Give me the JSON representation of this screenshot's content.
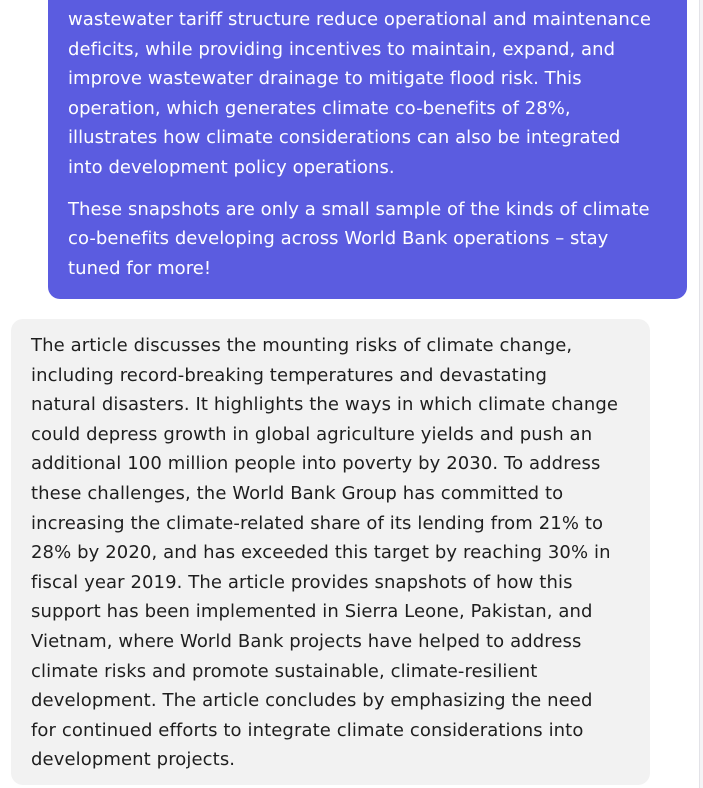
{
  "conversation": {
    "user_message": {
      "paragraph_1_lines": [
        "wastewater tariff structure reduce operational and maintenance",
        "deficits, while providing incentives to maintain, expand, and",
        "improve wastewater drainage to mitigate flood risk. This",
        "operation, which generates climate co-benefits of 28%,",
        "illustrates how climate considerations can also be integrated",
        "into development policy operations."
      ],
      "paragraph_2_lines": [
        "These snapshots are only a small sample of the kinds of climate",
        "co-benefits developing across World Bank operations – stay",
        "tuned for more!"
      ]
    },
    "assistant_message": {
      "lines": [
        "The article discusses the mounting risks of climate change,",
        "including record-breaking temperatures and devastating",
        "natural disasters. It highlights the ways in which climate change",
        "could depress growth in global agriculture yields and push an",
        "additional 100 million people into poverty by 2030. To address",
        "these challenges, the World Bank Group has committed to",
        "increasing the climate-related share of its lending from 21% to",
        "28% by 2020, and has exceeded this target by reaching 30% in",
        "fiscal year 2019. The article provides snapshots of how this",
        "support has been implemented in Sierra Leone, Pakistan, and",
        "Vietnam, where World Bank projects have helped to address",
        "climate risks and promote sustainable, climate-resilient",
        "development. The article concludes by emphasizing the need",
        "for continued efforts to integrate climate considerations into",
        "development projects."
      ]
    }
  },
  "colors": {
    "user_bubble": "#5b5ce0",
    "assistant_bubble": "#f2f2f2",
    "assistant_text": "#1e1e1e",
    "page_background": "#ffffff"
  }
}
